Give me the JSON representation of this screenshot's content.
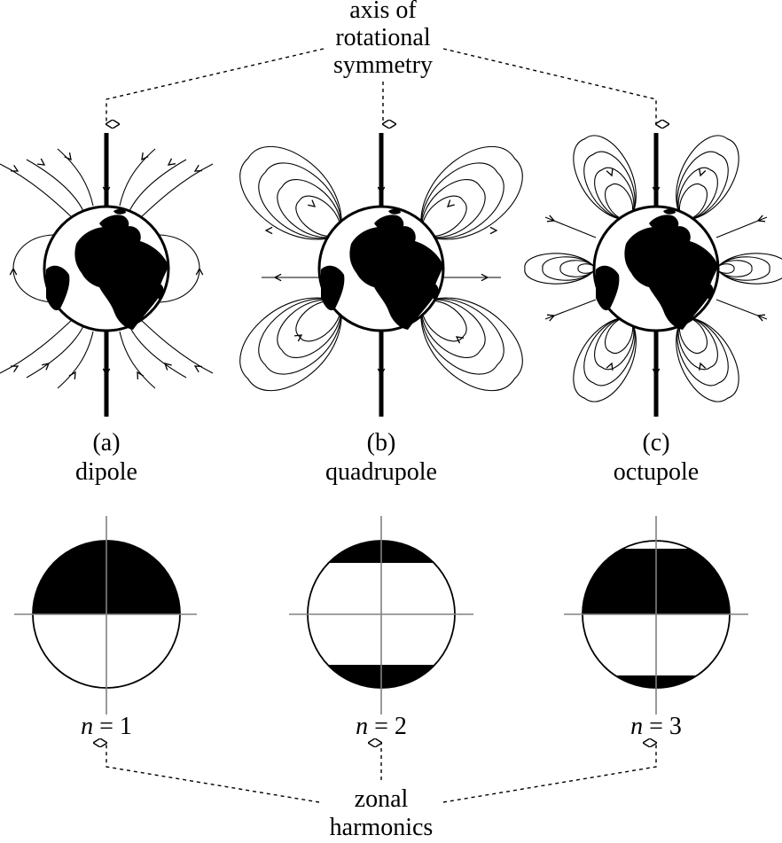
{
  "top_label": [
    "axis of",
    "rotational",
    "symmetry"
  ],
  "bottom_label": [
    "zonal",
    "harmonics"
  ],
  "panels": [
    {
      "letter": "(a)",
      "name": "dipole",
      "n_var": "n",
      "n_eq": " = 1"
    },
    {
      "letter": "(b)",
      "name": "quadrupole",
      "n_var": "n",
      "n_eq": " = 2"
    },
    {
      "letter": "(c)",
      "name": "octupole",
      "n_var": "n",
      "n_eq": " = 3"
    }
  ],
  "colors": {
    "ink": "#000000",
    "guide": "#808080",
    "paper": "#ffffff"
  },
  "icons": [
    "hollow-arrowhead-icon",
    "field-arrow-icon",
    "earth-globe-icon"
  ]
}
